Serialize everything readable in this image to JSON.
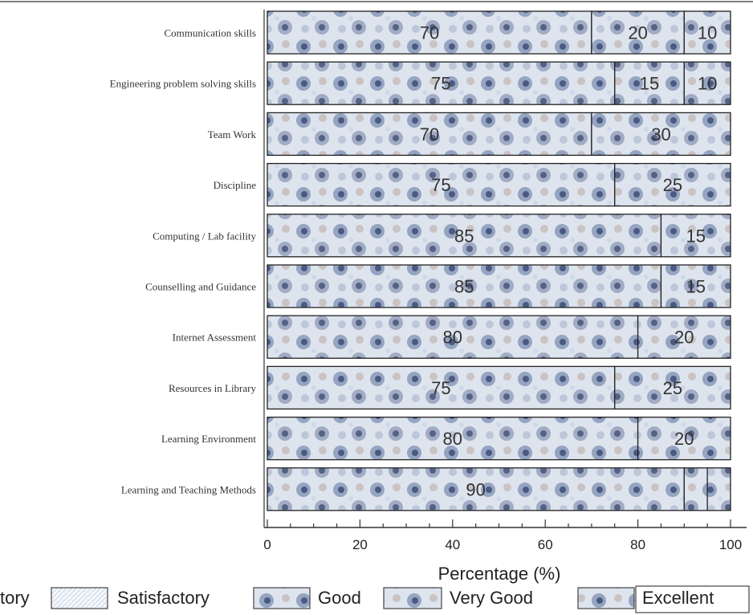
{
  "chart_data": {
    "type": "bar",
    "orientation": "horizontal",
    "stacked": true,
    "categories": [
      "Communication skills",
      "Engineering problem solving skills",
      "Team Work",
      "Discipline",
      "Computing / Lab facility",
      "Counselling and Guidance",
      "Internet Assessment",
      "Resources in Library",
      "Learning Environment",
      "Learning and Teaching Methods"
    ],
    "series": [
      {
        "name": "Very Good",
        "values": [
          70,
          75,
          70,
          75,
          85,
          85,
          80,
          75,
          80,
          90
        ],
        "labels": [
          "70",
          "75",
          "70",
          "75",
          "85",
          "85",
          "80",
          "75",
          "80",
          "90"
        ]
      },
      {
        "name": "Good",
        "values": [
          20,
          15,
          30,
          25,
          15,
          15,
          20,
          25,
          20,
          5
        ],
        "labels": [
          "20",
          "15",
          "30",
          "25",
          "15",
          "15",
          "20",
          "25",
          "20",
          ""
        ]
      },
      {
        "name": "Satisfactory",
        "values": [
          10,
          10,
          0,
          0,
          0,
          0,
          0,
          0,
          0,
          5
        ],
        "labels": [
          "10",
          "10",
          "",
          "",
          "",
          "",
          "",
          "",
          "",
          ""
        ]
      }
    ],
    "xlabel": "Percentage (%)",
    "xlim": [
      0,
      100
    ],
    "xticks": [
      "0",
      "20",
      "40",
      "60",
      "80",
      "100"
    ],
    "legend_position": "bottom",
    "legend": [
      "tory",
      "Satisfactory",
      "Good",
      "Very Good",
      "Excellent"
    ]
  }
}
